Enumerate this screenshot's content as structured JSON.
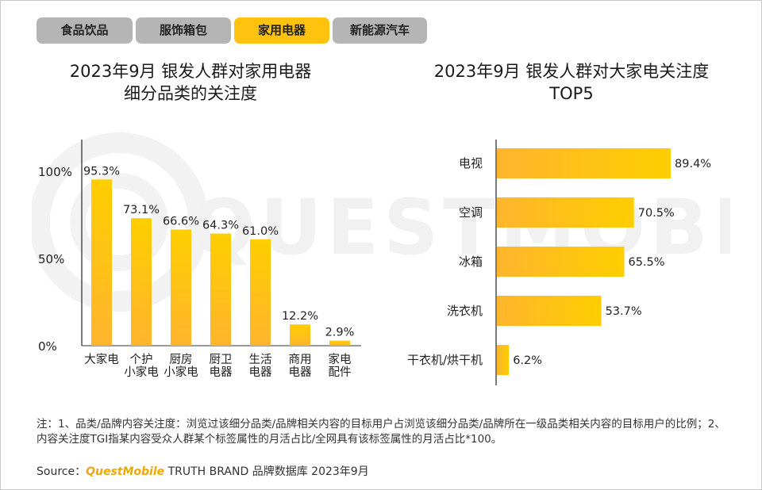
{
  "tabs": [
    {
      "label": "食品饮品",
      "active": false
    },
    {
      "label": "服饰箱包",
      "active": false
    },
    {
      "label": "家用电器",
      "active": true
    },
    {
      "label": "新能源汽车",
      "active": false
    }
  ],
  "watermark": "QUESTMOBILE",
  "colors": {
    "bar_start": "#ffb52e",
    "bar_end": "#ffce00",
    "tab_active": "#ffc20e",
    "tab_inactive": "#b5b5b5"
  },
  "chart_data": [
    {
      "type": "bar",
      "title_lines": [
        "2023年9月 银发人群对家用电器",
        "细分品类的关注度"
      ],
      "categories": [
        [
          "大家电"
        ],
        [
          "个护",
          "小家电"
        ],
        [
          "厨房",
          "小家电"
        ],
        [
          "厨卫",
          "电器"
        ],
        [
          "生活",
          "电器"
        ],
        [
          "商用",
          "电器"
        ],
        [
          "家电",
          "配件"
        ]
      ],
      "values": [
        95.3,
        73.1,
        66.6,
        64.3,
        61.0,
        12.2,
        2.9
      ],
      "value_labels": [
        "95.3%",
        "73.1%",
        "66.6%",
        "64.3%",
        "61.0%",
        "12.2%",
        "2.9%"
      ],
      "yticks": [
        "0%",
        "50%",
        "100%"
      ],
      "ytick_values": [
        0,
        50,
        100
      ],
      "ylim": [
        0,
        100
      ]
    },
    {
      "type": "bar-horizontal",
      "title_lines": [
        "2023年9月 银发人群对大家电关注度",
        "TOP5"
      ],
      "categories": [
        "电视",
        "空调",
        "冰箱",
        "洗衣机",
        "干衣机/烘干机"
      ],
      "values": [
        89.4,
        70.5,
        65.5,
        53.7,
        6.2
      ],
      "value_labels": [
        "89.4%",
        "70.5%",
        "65.5%",
        "53.7%",
        "6.2%"
      ],
      "xlim": [
        0,
        100
      ]
    }
  ],
  "note": "注：1、品类/品牌内容关注度：浏览过该细分品类/品牌相关内容的目标用户占浏览该细分品类/品牌所在一级品类相关内容的目标用户的比例；2、内容关注度TGI指某内容受众人群某个标签属性的月活占比/全网具有该标签属性的月活占比*100。",
  "source": {
    "prefix": "Source：",
    "brand": "QuestMobile",
    "suffix": " TRUTH BRAND 品牌数据库 2023年9月"
  }
}
